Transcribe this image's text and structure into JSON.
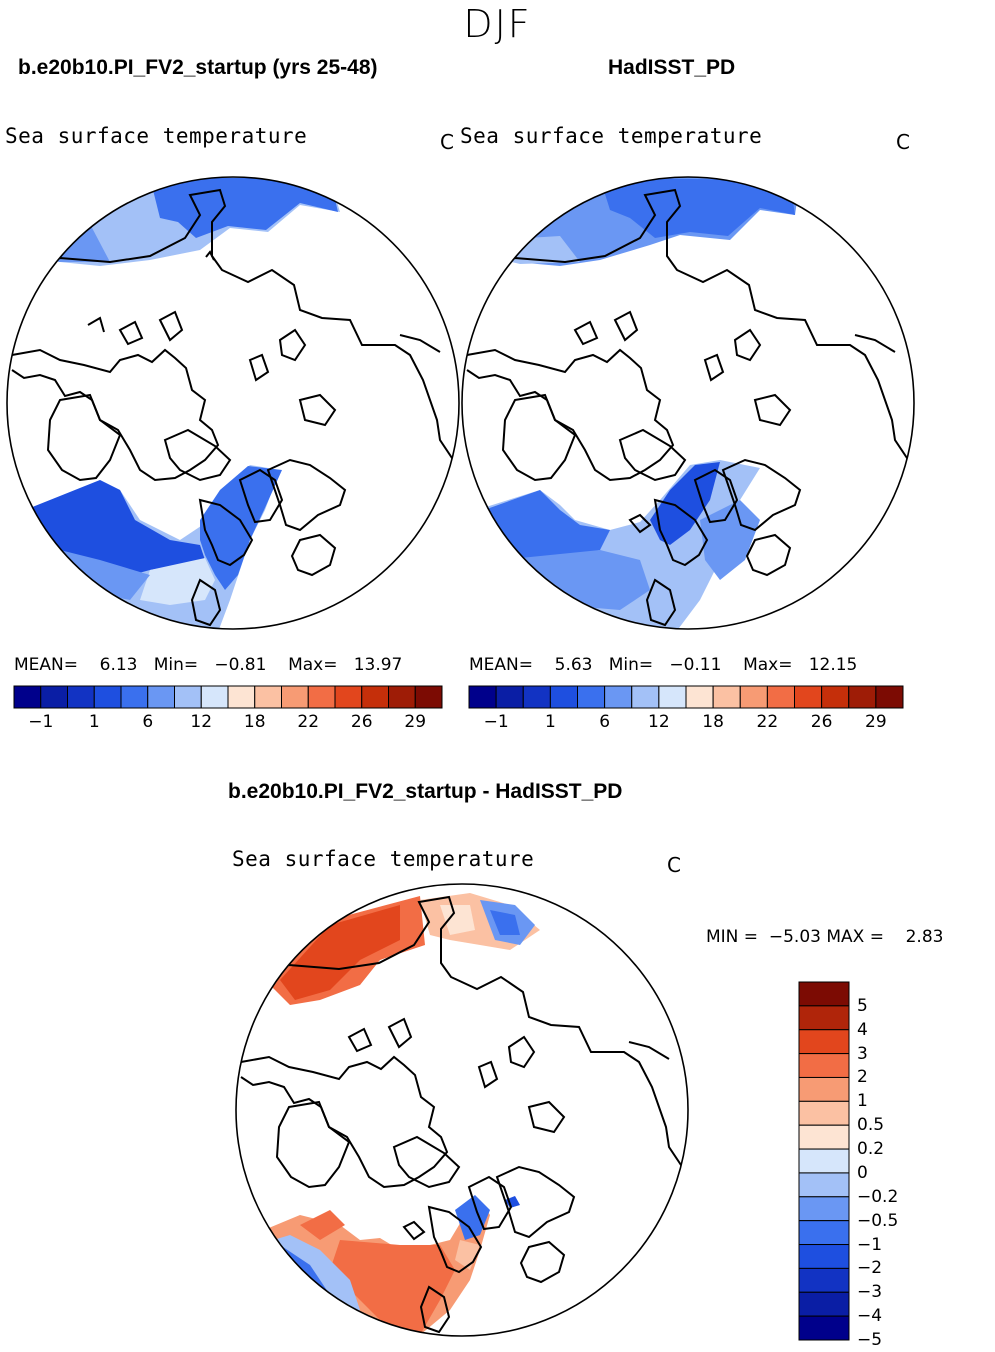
{
  "season": "DJF",
  "maps": [
    {
      "title": "b.e20b10.PI_FV2_startup (yrs 25-48)",
      "field": "Sea surface temperature",
      "units": "C",
      "stats": {
        "mean_label": "MEAN=",
        "mean": "6.13",
        "min_label": "Min=",
        "min": "−0.81",
        "max_label": "Max=",
        "max": "13.97"
      }
    },
    {
      "title": "HadISST_PD",
      "field": "Sea surface temperature",
      "units": "C",
      "stats": {
        "mean_label": "MEAN=",
        "mean": "5.63",
        "min_label": "Min=",
        "min": "−0.11",
        "max_label": "Max=",
        "max": "12.15"
      }
    }
  ],
  "colorbar": {
    "colors": [
      "#00008b",
      "#0a1ea5",
      "#1233c3",
      "#1e4fe0",
      "#3a70ee",
      "#6a97f3",
      "#a3c1f7",
      "#d6e6fb",
      "#fde4d3",
      "#fbc1a3",
      "#f79b74",
      "#f26d45",
      "#e2461d",
      "#c52f0a",
      "#9e1c06",
      "#7c0b03"
    ],
    "ticks": [
      "−1",
      "1",
      "6",
      "12",
      "18",
      "22",
      "26",
      "29"
    ]
  },
  "diff": {
    "title": "b.e20b10.PI_FV2_startup - HadISST_PD",
    "field": "Sea surface temperature",
    "units": "C",
    "range": {
      "min_label": "MIN =",
      "min": "−5.03",
      "max_label": "MAX =",
      "max": "2.83"
    },
    "colorbar_colors": [
      "#7c0b03",
      "#b0250a",
      "#e2461d",
      "#f26d45",
      "#f79b74",
      "#fbc1a3",
      "#fde4d3",
      "#d6e6fb",
      "#a3c1f7",
      "#6a97f3",
      "#3a70ee",
      "#1e4fe0",
      "#1233c3",
      "#0a1ea5",
      "#00008b"
    ],
    "colorbar_labels": [
      "5",
      "4",
      "3",
      "2",
      "1",
      "0.5",
      "0.2",
      "0",
      "−0.2",
      "−0.5",
      "−1",
      "−2",
      "−3",
      "−4",
      "−5"
    ]
  }
}
